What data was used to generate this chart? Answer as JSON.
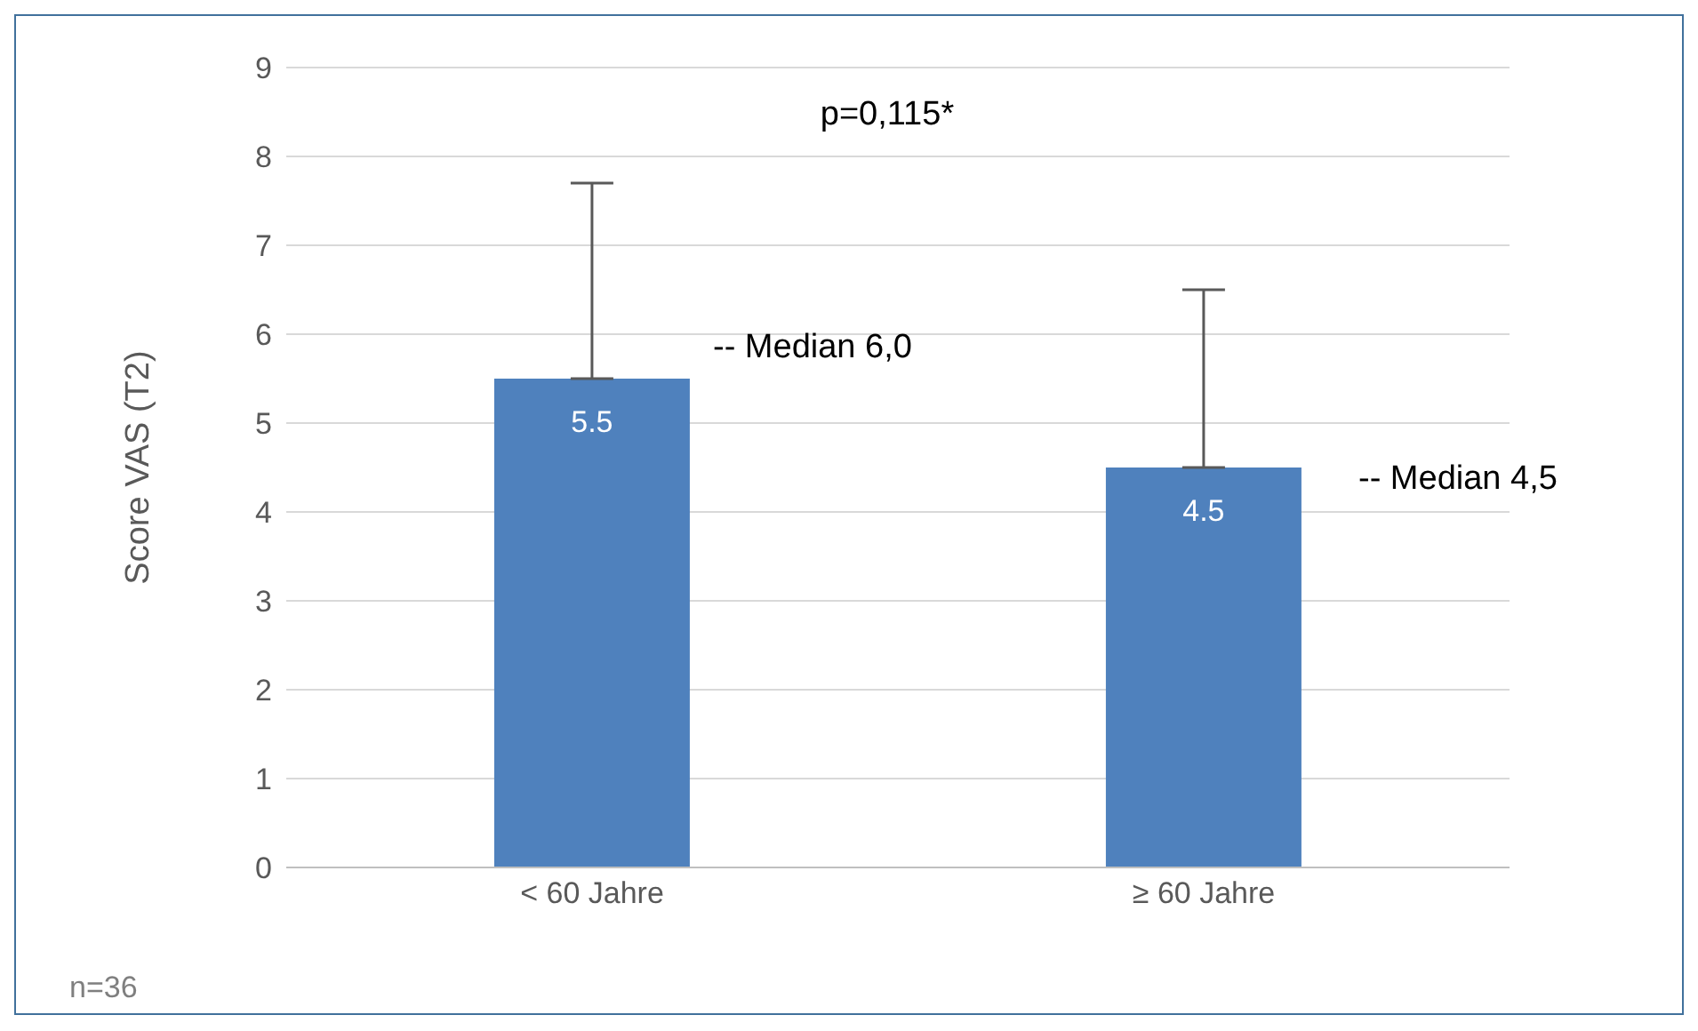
{
  "chart_data": {
    "type": "bar",
    "ylabel": "Score VAS (T2)",
    "categories": [
      "< 60 Jahre",
      "≥ 60 Jahre"
    ],
    "values": [
      5.5,
      4.5
    ],
    "errors": [
      [
        5.5,
        7.7
      ],
      [
        4.5,
        6.5
      ]
    ],
    "color": "#4f81bd",
    "ylim": [
      0,
      9
    ],
    "yticks": [
      0,
      1,
      2,
      3,
      4,
      5,
      6,
      7,
      8,
      9
    ],
    "grid": "y",
    "legend": false,
    "data_labels": true,
    "annotations": [
      "p=0,115*",
      "-- Median 6,0",
      "-- Median 4,5",
      "n=36"
    ]
  }
}
